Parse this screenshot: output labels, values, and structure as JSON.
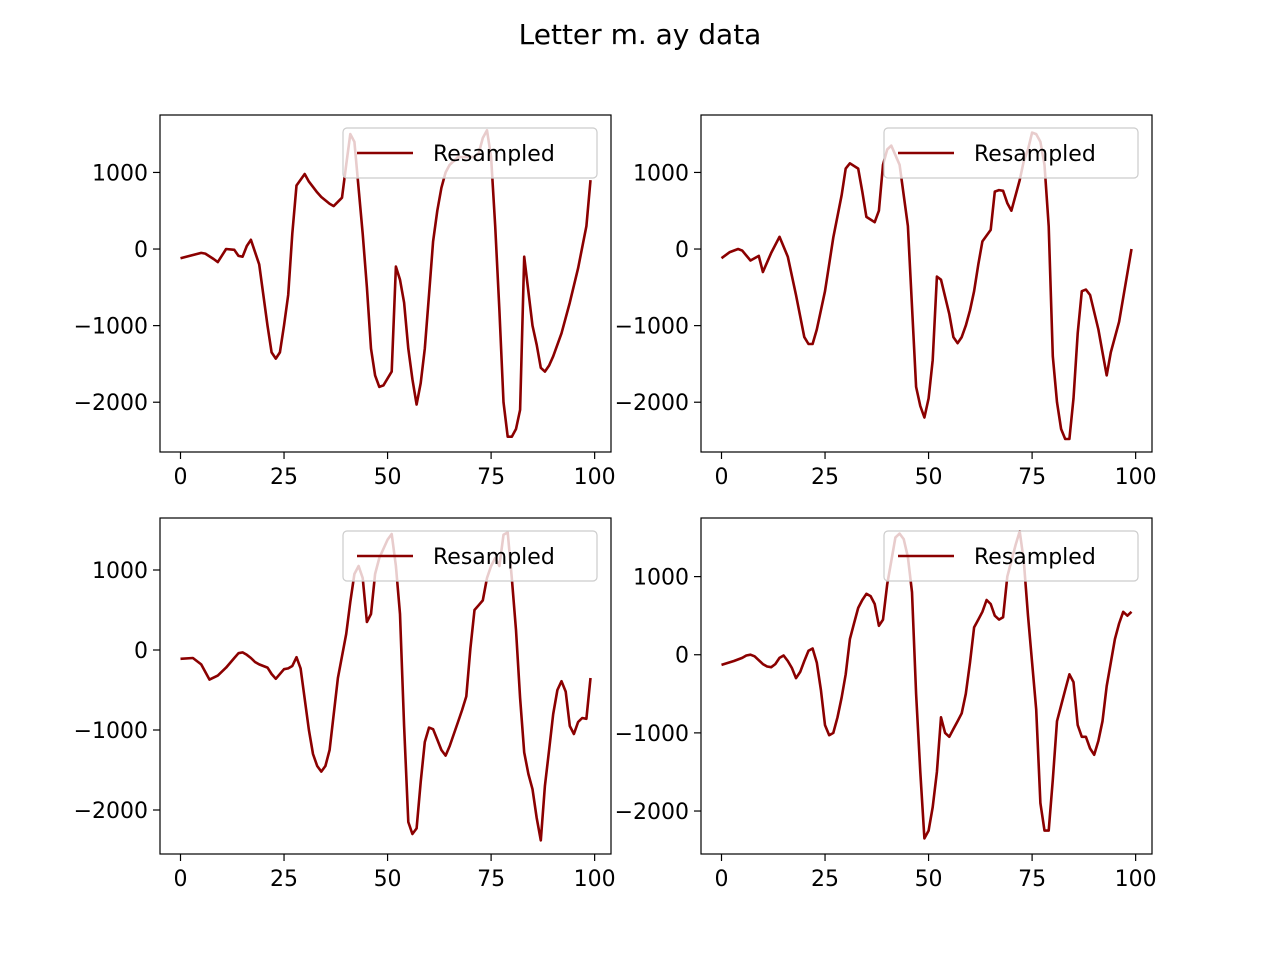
{
  "figure": {
    "title": "Letter m. ay data",
    "line_color": "#8b0000"
  },
  "chart_data": [
    {
      "type": "line",
      "xlim": [
        -4.95,
        103.95
      ],
      "ylim": [
        -2650,
        1750
      ],
      "xticks": [
        0,
        25,
        50,
        75,
        100
      ],
      "yticks": [
        -2000,
        -1000,
        0,
        1000
      ],
      "legend_position": "top-right",
      "series": [
        {
          "name": "Resampled",
          "x": [
            0,
            5,
            6,
            8,
            9,
            11,
            13,
            14,
            15,
            16,
            17,
            19,
            21,
            22,
            23,
            24,
            25,
            26,
            27,
            28,
            30,
            31,
            33,
            34,
            36,
            37,
            39,
            40,
            41,
            42,
            44,
            45,
            46,
            47,
            48,
            49,
            51,
            52,
            53,
            54,
            55,
            56,
            57,
            58,
            59,
            60,
            61,
            62,
            63,
            64,
            65,
            66,
            67,
            68,
            69,
            70,
            71,
            72,
            73,
            74,
            75,
            76,
            77,
            78,
            79,
            80,
            81,
            82,
            83,
            85,
            86,
            87,
            88,
            89,
            90,
            92,
            94,
            96,
            98,
            99
          ],
          "y": [
            -120,
            -50,
            -60,
            -130,
            -170,
            0,
            -10,
            -90,
            -100,
            40,
            120,
            -200,
            -1000,
            -1350,
            -1430,
            -1350,
            -1000,
            -600,
            200,
            830,
            980,
            880,
            740,
            680,
            590,
            560,
            670,
            1100,
            1500,
            1400,
            200,
            -500,
            -1300,
            -1650,
            -1800,
            -1780,
            -1600,
            -230,
            -400,
            -700,
            -1300,
            -1700,
            -2030,
            -1750,
            -1300,
            -600,
            100,
            500,
            800,
            1000,
            1100,
            1150,
            1200,
            1200,
            1200,
            1200,
            1200,
            1250,
            1450,
            1550,
            1200,
            300,
            -800,
            -2000,
            -2450,
            -2450,
            -2350,
            -2100,
            -100,
            -1000,
            -1250,
            -1550,
            -1600,
            -1520,
            -1400,
            -1100,
            -700,
            -250,
            300,
            900
          ]
        }
      ]
    },
    {
      "type": "line",
      "xlim": [
        -4.95,
        103.95
      ],
      "ylim": [
        -2650,
        1750
      ],
      "xticks": [
        0,
        25,
        50,
        75,
        100
      ],
      "yticks": [
        -2000,
        -1000,
        0,
        1000
      ],
      "legend_position": "top-right",
      "series": [
        {
          "name": "Resampled",
          "x": [
            0,
            2,
            4,
            5,
            7,
            9,
            10,
            12,
            14,
            16,
            18,
            20,
            21,
            22,
            23,
            25,
            27,
            29,
            30,
            31,
            33,
            34,
            35,
            37,
            38,
            39,
            40,
            41,
            43,
            45,
            47,
            48,
            49,
            50,
            51,
            52,
            53,
            55,
            56,
            57,
            58,
            59,
            60,
            61,
            62,
            63,
            65,
            66,
            67,
            68,
            69,
            70,
            72,
            73,
            74,
            75,
            76,
            77,
            78,
            79,
            80,
            81,
            82,
            83,
            84,
            85,
            86,
            87,
            88,
            89,
            91,
            92,
            93,
            94,
            96,
            99
          ],
          "y": [
            -120,
            -40,
            0,
            -20,
            -150,
            -90,
            -300,
            -50,
            160,
            -100,
            -600,
            -1150,
            -1240,
            -1240,
            -1050,
            -550,
            150,
            700,
            1050,
            1120,
            1050,
            750,
            420,
            350,
            500,
            1100,
            1300,
            1350,
            1100,
            300,
            -1800,
            -2050,
            -2200,
            -1950,
            -1450,
            -360,
            -400,
            -850,
            -1150,
            -1230,
            -1150,
            -1000,
            -800,
            -550,
            -200,
            100,
            250,
            750,
            770,
            760,
            600,
            500,
            900,
            1150,
            1300,
            1520,
            1500,
            1400,
            1100,
            300,
            -1400,
            -2000,
            -2350,
            -2480,
            -2480,
            -1950,
            -1100,
            -550,
            -530,
            -600,
            -1050,
            -1350,
            -1650,
            -1350,
            -950,
            0
          ]
        }
      ]
    },
    {
      "type": "line",
      "xlim": [
        -4.95,
        103.95
      ],
      "ylim": [
        -2550,
        1650
      ],
      "xticks": [
        0,
        25,
        50,
        75,
        100
      ],
      "yticks": [
        -2000,
        -1000,
        0,
        1000
      ],
      "legend_position": "top-right",
      "series": [
        {
          "name": "Resampled",
          "x": [
            0,
            3,
            5,
            7,
            9,
            11,
            13,
            14,
            15,
            16,
            17,
            18,
            19,
            21,
            22,
            23,
            25,
            26,
            27,
            28,
            29,
            31,
            32,
            33,
            34,
            35,
            36,
            38,
            40,
            41,
            42,
            43,
            44,
            45,
            46,
            47,
            48,
            50,
            51,
            52,
            53,
            54,
            55,
            56,
            57,
            58,
            59,
            60,
            61,
            62,
            63,
            64,
            65,
            67,
            68,
            69,
            70,
            71,
            72,
            73,
            74,
            75,
            76,
            77,
            78,
            79,
            80,
            81,
            82,
            83,
            84,
            85,
            86,
            87,
            88,
            89,
            90,
            91,
            92,
            93,
            94,
            95,
            96,
            97,
            98,
            99
          ],
          "y": [
            -110,
            -100,
            -180,
            -370,
            -320,
            -220,
            -100,
            -40,
            -30,
            -60,
            -100,
            -150,
            -180,
            -220,
            -300,
            -360,
            -240,
            -230,
            -200,
            -90,
            -230,
            -1000,
            -1300,
            -1450,
            -1520,
            -1450,
            -1250,
            -350,
            200,
            600,
            950,
            1050,
            900,
            350,
            450,
            950,
            1150,
            1380,
            1450,
            1050,
            450,
            -950,
            -2150,
            -2300,
            -2230,
            -1650,
            -1150,
            -970,
            -990,
            -1120,
            -1250,
            -1320,
            -1200,
            -900,
            -750,
            -580,
            20,
            500,
            560,
            620,
            900,
            1050,
            1150,
            1050,
            1440,
            1470,
            900,
            250,
            -600,
            -1280,
            -1550,
            -1740,
            -2100,
            -2380,
            -1700,
            -1250,
            -800,
            -500,
            -390,
            -520,
            -950,
            -1050,
            -900,
            -850,
            -860,
            -350
          ]
        }
      ]
    },
    {
      "type": "line",
      "xlim": [
        -4.95,
        103.95
      ],
      "ylim": [
        -2550,
        1750
      ],
      "xticks": [
        0,
        25,
        50,
        75,
        100
      ],
      "yticks": [
        -2000,
        -1000,
        0,
        1000
      ],
      "legend_position": "top-right",
      "series": [
        {
          "name": "Resampled",
          "x": [
            0,
            3,
            5,
            6,
            7,
            8,
            10,
            11,
            12,
            13,
            14,
            15,
            16,
            17,
            18,
            19,
            20,
            21,
            22,
            23,
            24,
            25,
            26,
            27,
            28,
            29,
            30,
            31,
            32,
            33,
            34,
            35,
            36,
            37,
            38,
            39,
            40,
            41,
            42,
            43,
            44,
            45,
            46,
            47,
            48,
            49,
            50,
            51,
            52,
            53,
            54,
            55,
            56,
            57,
            58,
            59,
            60,
            61,
            62,
            63,
            64,
            65,
            66,
            67,
            68,
            69,
            70,
            71,
            72,
            73,
            74,
            75,
            76,
            77,
            78,
            79,
            80,
            81,
            82,
            83,
            84,
            85,
            86,
            87,
            88,
            89,
            90,
            91,
            92,
            93,
            94,
            95,
            96,
            97,
            98,
            99
          ],
          "y": [
            -130,
            -80,
            -40,
            -10,
            0,
            -20,
            -120,
            -150,
            -160,
            -120,
            -40,
            -10,
            -80,
            -170,
            -300,
            -220,
            -80,
            50,
            80,
            -100,
            -450,
            -900,
            -1030,
            -1000,
            -800,
            -550,
            -250,
            200,
            400,
            600,
            700,
            780,
            750,
            650,
            370,
            450,
            900,
            1200,
            1500,
            1550,
            1480,
            1250,
            800,
            -500,
            -1500,
            -2350,
            -2250,
            -1950,
            -1500,
            -800,
            -1000,
            -1050,
            -950,
            -850,
            -750,
            -500,
            -100,
            350,
            450,
            550,
            700,
            650,
            500,
            450,
            480,
            1000,
            1200,
            1400,
            1580,
            1200,
            500,
            -100,
            -700,
            -1900,
            -2250,
            -2250,
            -1600,
            -850,
            -650,
            -450,
            -250,
            -350,
            -900,
            -1050,
            -1050,
            -1200,
            -1280,
            -1100,
            -850,
            -400,
            -100,
            200,
            400,
            550,
            500,
            550
          ]
        }
      ]
    }
  ]
}
